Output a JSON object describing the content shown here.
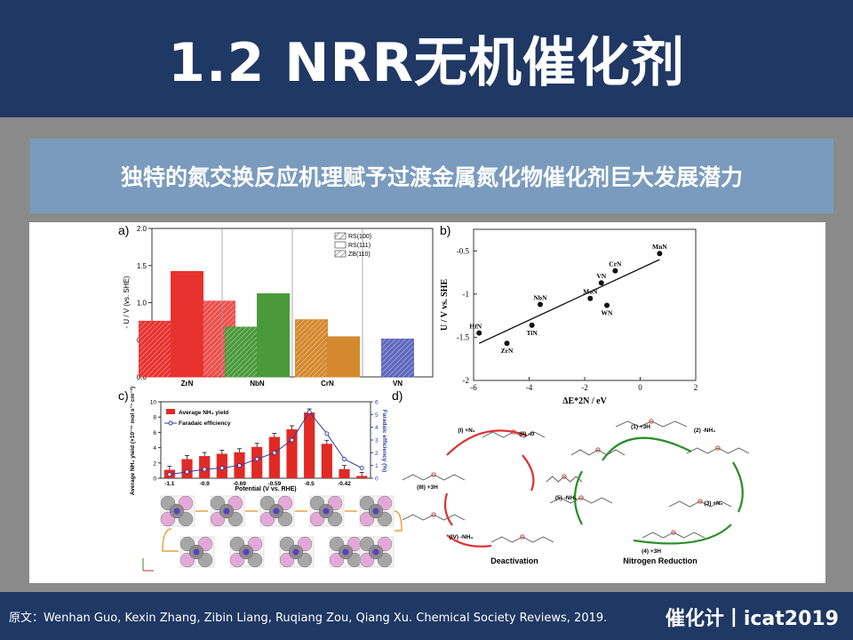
{
  "slide": {
    "title": "1.2 NRR无机催化剂",
    "subtitle": "独特的氮交换反应机理赋予过渡金属氮化物催化剂巨大发展潜力",
    "source": "原文：Wenhan Guo, Kexin Zhang, Zibin Liang, Ruqiang Zou, Qiang Xu. Chemical Society Reviews, 2019.",
    "brand": "催化计丨icat2019"
  },
  "panels": {
    "a_label": "a)",
    "b_label": "b)",
    "c_label": "c)",
    "d_label": "d)",
    "d_left_caption": "Deactivation",
    "d_right_caption": "Nitrogen Reduction",
    "d_steps": [
      "(1) +3H",
      "(2) -NH₃",
      "(3) +N₂",
      "(4) +3H",
      "(5) -NH₃",
      "(I) +N₂",
      "(II) -O",
      "(III) +3H",
      "(IV) -NH₃"
    ]
  },
  "chart_data": [
    {
      "type": "bar",
      "panel": "a",
      "categories": [
        "ZrN",
        "NbN",
        "CrN",
        "VN"
      ],
      "series": [
        {
          "name": "RS(100)",
          "values": [
            0.75,
            0.67,
            0.77,
            null
          ]
        },
        {
          "name": "RS(111)",
          "values": [
            1.42,
            1.12,
            0.54,
            null
          ]
        },
        {
          "name": "ZB(110)",
          "values": [
            1.02,
            null,
            null,
            0.51
          ]
        }
      ],
      "colors": {
        "ZrN": "#e8322e",
        "NbN": "#4a9a3b",
        "CrN": "#d5892f",
        "VN": "#4550b5"
      },
      "ylabel": "- U / V (vs. SHE)",
      "ylim": [
        0,
        2.0
      ],
      "yticks": [
        "0.0",
        "0.5",
        "1.0",
        "1.5",
        "2.0"
      ],
      "legend": "top-right"
    },
    {
      "type": "scatter",
      "panel": "b",
      "points": [
        {
          "label": "HfN",
          "x": -5.8,
          "y": -1.45
        },
        {
          "label": "ZrN",
          "x": -4.8,
          "y": -1.57
        },
        {
          "label": "TiN",
          "x": -3.9,
          "y": -1.36
        },
        {
          "label": "NbN",
          "x": -3.6,
          "y": -1.12
        },
        {
          "label": "MoN",
          "x": -1.8,
          "y": -1.05
        },
        {
          "label": "VN",
          "x": -1.4,
          "y": -0.87
        },
        {
          "label": "WN",
          "x": -1.2,
          "y": -1.13
        },
        {
          "label": "CrN",
          "x": -0.9,
          "y": -0.73
        },
        {
          "label": "MnN",
          "x": 0.7,
          "y": -0.53
        }
      ],
      "fit_line": {
        "x": [
          -5.8,
          0.7
        ],
        "y": [
          -1.57,
          -0.6
        ]
      },
      "xlabel": "ΔE*2N / eV",
      "ylabel": "U / V vs. SHE",
      "xlim": [
        -6,
        2
      ],
      "ylim": [
        -2,
        -0.25
      ],
      "xticks": [
        "-6",
        "-4",
        "-2",
        "0",
        "2"
      ],
      "yticks": [
        "-2",
        "-1.5",
        "-1",
        "-0.5"
      ]
    },
    {
      "type": "bar",
      "panel": "c",
      "categories": [
        "-1.1",
        "-1.0",
        "-0.9",
        "-0.8",
        "-0.69",
        "-0.64",
        "-0.59",
        "-0.54",
        "-0.5",
        "-0.46",
        "-0.42",
        "-0.38"
      ],
      "tick_labels_shown": [
        "-1.1",
        "-0.9",
        "-0.69",
        "-0.59",
        "-0.5",
        "-0.42"
      ],
      "series": [
        {
          "name": "Average NH₃ yield",
          "values": [
            1.1,
            2.5,
            2.9,
            3.2,
            3.4,
            4.1,
            5.4,
            6.4,
            8.6,
            4.5,
            1.2,
            0.3
          ]
        },
        {
          "name": "Faradaic efficiency",
          "values": [
            0.3,
            0.5,
            0.7,
            0.8,
            1.0,
            1.5,
            2.0,
            3.0,
            5.2,
            3.5,
            1.5,
            0.8
          ]
        }
      ],
      "xlabel": "Potential (V vs. RHE)",
      "ylabel": "Average NH₃ yield (×10⁻¹¹ mol s⁻¹ cm⁻²)",
      "y2label": "Faradaic efficiency (%)",
      "ylim": [
        0,
        10
      ],
      "y2lim": [
        0,
        6
      ],
      "yticks": [
        "0",
        "2",
        "4",
        "6",
        "8",
        "10"
      ],
      "y2ticks": [
        "0",
        "1",
        "2",
        "3",
        "4",
        "5",
        "6"
      ],
      "legend": "top-left"
    }
  ]
}
